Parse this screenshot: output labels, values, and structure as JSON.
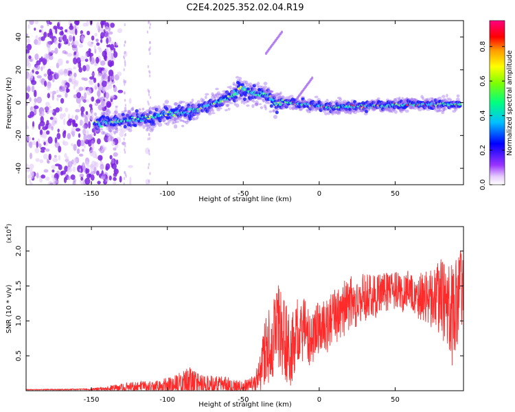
{
  "figure": {
    "title": "C2E4.2025.352.02.04.R19"
  },
  "chart_data": [
    {
      "type": "heatmap",
      "xlabel": "Height of straight line (km)",
      "ylabel": "Frequency (Hz)",
      "xlim": [
        -193,
        95
      ],
      "ylim": [
        -50,
        50
      ],
      "xticks": [
        -150,
        -100,
        -50,
        0,
        50
      ],
      "yticks": [
        -40,
        -20,
        0,
        20,
        40
      ],
      "colorbar": {
        "label": "Normalized spectral amplitude",
        "range": [
          0.0,
          0.95
        ],
        "ticks": [
          0.0,
          0.2,
          0.4,
          0.6,
          0.8
        ],
        "colormap": [
          "#ff00ff",
          "#ff0000",
          "#ff8000",
          "#ffff00",
          "#00ff00",
          "#00ffff",
          "#0000ff",
          "#7f00ff",
          "#ffffff"
        ]
      },
      "ridge": {
        "x": [
          -148,
          -140,
          -130,
          -120,
          -110,
          -100,
          -90,
          -80,
          -70,
          -60,
          -52,
          -45,
          -38,
          -32,
          -28,
          -25,
          -20,
          -10,
          0,
          10,
          20,
          40,
          60,
          80,
          93
        ],
        "y": [
          -13,
          -12,
          -11,
          -10,
          -9,
          -7,
          -6,
          -4,
          -1,
          3,
          8,
          6,
          5,
          4,
          -2,
          1,
          0,
          -1,
          -2,
          -3,
          -2,
          -2,
          -1,
          -1,
          -1
        ]
      },
      "noise_region_x": [
        -193,
        -133
      ],
      "artifacts": [
        {
          "x": -10,
          "y": 2
        },
        {
          "x": -30,
          "y": 30
        }
      ],
      "grid": false
    },
    {
      "type": "line",
      "xlabel": "Height of straight line (km)",
      "ylabel": "SNR (10 * v/v)",
      "y_multiplier": "(x10",
      "y_multiplier_exp": "4",
      "xlim": [
        -193,
        95
      ],
      "ylim": [
        0,
        23500
      ],
      "xticks": [
        -150,
        -100,
        -50,
        0,
        50
      ],
      "yticks": [
        5000,
        10000,
        15000,
        20000
      ],
      "ytick_labels": [
        "0.5",
        "1.0",
        "1.5",
        "2.0"
      ],
      "series": [
        {
          "color": "#ff2a2a",
          "x": [
            -193,
            -150,
            -125,
            -115,
            -105,
            -95,
            -90,
            -85,
            -80,
            -75,
            -70,
            -60,
            -50,
            -42,
            -38,
            -35,
            -30,
            -26,
            -22,
            -18,
            -15,
            -12,
            -8,
            -4,
            0,
            5,
            10,
            15,
            20,
            25,
            30,
            35,
            40,
            45,
            50,
            55,
            60,
            65,
            70,
            75,
            80,
            85,
            88,
            90,
            93
          ],
          "mean": [
            150,
            200,
            500,
            700,
            600,
            900,
            1100,
            1300,
            1100,
            800,
            900,
            700,
            500,
            1000,
            3500,
            6000,
            8000,
            9500,
            7500,
            5500,
            8500,
            9000,
            8000,
            7500,
            9000,
            9500,
            10500,
            11500,
            12500,
            13000,
            13500,
            13800,
            14000,
            14200,
            14300,
            14200,
            14000,
            13800,
            13500,
            13200,
            13000,
            12000,
            11000,
            13000,
            15000
          ],
          "noise": [
            50,
            100,
            600,
            700,
            800,
            1200,
            1500,
            1800,
            1500,
            1200,
            1200,
            1200,
            800,
            1200,
            3000,
            4500,
            5500,
            6000,
            5500,
            4500,
            4500,
            4500,
            4000,
            3500,
            3500,
            3500,
            3500,
            3500,
            3500,
            3500,
            3200,
            3000,
            2800,
            2600,
            2500,
            2600,
            2800,
            3000,
            3500,
            4000,
            5000,
            6500,
            7500,
            6500,
            5000
          ]
        }
      ],
      "grid": false
    }
  ]
}
